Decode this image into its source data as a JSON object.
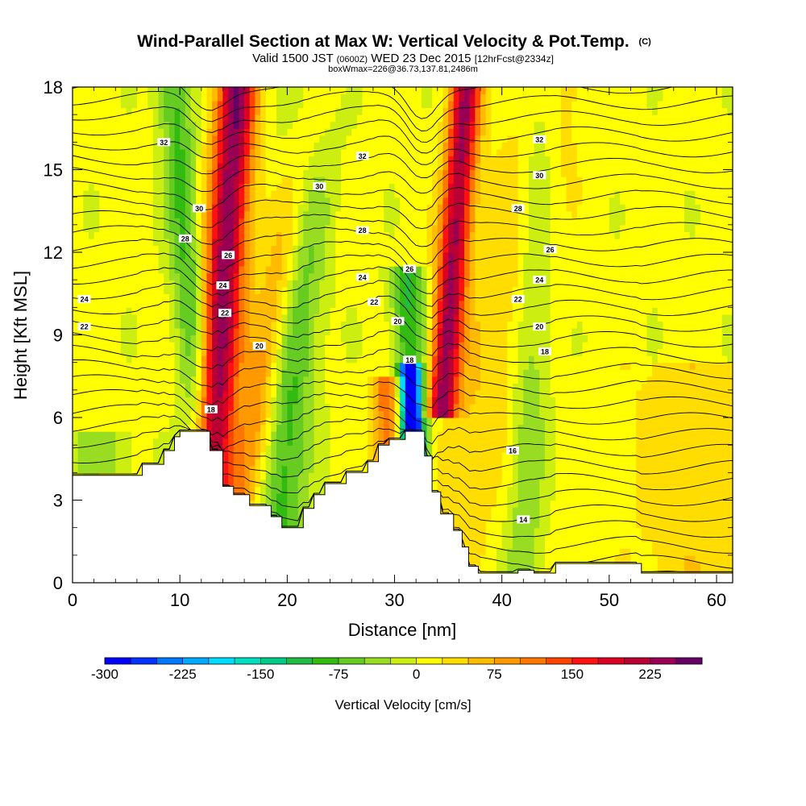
{
  "title": {
    "main": "Wind-Parallel Section at Max W: Vertical Velocity & Pot.Temp.",
    "main_mark": "(C)",
    "valid_a": "Valid 1500 JST",
    "valid_b": "(0600Z)",
    "valid_c": "WED 23 Dec 2015",
    "valid_d": "[12hrFcst@2334z]",
    "box": "boxWmax=226@36.73,137.81,2486m"
  },
  "chart_data": {
    "type": "heatmap",
    "xlabel": "Distance [nm]",
    "ylabel": "Height [Kft MSL]",
    "xlim": [
      0,
      61.5
    ],
    "ylim": [
      0,
      18
    ],
    "xticks": [
      "0",
      "10",
      "20",
      "30",
      "40",
      "50",
      "60"
    ],
    "yticks": [
      "0",
      "3",
      "6",
      "9",
      "12",
      "15",
      "18"
    ],
    "colorbar": {
      "title": "Vertical Velocity [cm/s]",
      "tick_labels": [
        "-300",
        "-225",
        "-150",
        "-75",
        "0",
        "75",
        "150",
        "225"
      ],
      "levels": [
        -300,
        -275,
        -250,
        -225,
        -200,
        -175,
        -150,
        -125,
        -100,
        -75,
        -50,
        -25,
        0,
        25,
        50,
        75,
        100,
        125,
        150,
        175,
        200,
        225,
        250
      ],
      "colors": [
        "#0000ff",
        "#0033ff",
        "#0077ff",
        "#00aaff",
        "#00ddff",
        "#00e0c0",
        "#00cc88",
        "#22bb44",
        "#33bb11",
        "#66cc22",
        "#99dd22",
        "#ccee11",
        "#ffff00",
        "#ffdd00",
        "#ffbb00",
        "#ff9900",
        "#ff7700",
        "#ff4400",
        "#ff1111",
        "#dd0022",
        "#bb0033",
        "#990055",
        "#660066"
      ]
    },
    "terrain_kft": [
      [
        0,
        3.9
      ],
      [
        6.5,
        3.9
      ],
      [
        6.5,
        4.3
      ],
      [
        8.5,
        4.3
      ],
      [
        8.5,
        4.8
      ],
      [
        9.5,
        4.8
      ],
      [
        9.5,
        5.3
      ],
      [
        10,
        5.3
      ],
      [
        10,
        5.5
      ],
      [
        12.8,
        5.5
      ],
      [
        12.8,
        4.8
      ],
      [
        14,
        4.8
      ],
      [
        14,
        3.5
      ],
      [
        15,
        3.5
      ],
      [
        15,
        3.2
      ],
      [
        16.5,
        3.2
      ],
      [
        16.5,
        2.8
      ],
      [
        18.5,
        2.8
      ],
      [
        18.5,
        2.4
      ],
      [
        19.5,
        2.4
      ],
      [
        19.5,
        2.0
      ],
      [
        21.5,
        2.0
      ],
      [
        21.5,
        2.7
      ],
      [
        22.5,
        2.7
      ],
      [
        22.5,
        3.2
      ],
      [
        23.5,
        3.2
      ],
      [
        23.5,
        3.6
      ],
      [
        25.5,
        3.6
      ],
      [
        25.5,
        4.0
      ],
      [
        27.5,
        4.0
      ],
      [
        27.5,
        4.4
      ],
      [
        28.5,
        4.4
      ],
      [
        28.5,
        5.0
      ],
      [
        29.5,
        5.0
      ],
      [
        29.5,
        5.2
      ],
      [
        31,
        5.2
      ],
      [
        31,
        5.5
      ],
      [
        32.8,
        5.5
      ],
      [
        32.8,
        4.6
      ],
      [
        33.5,
        4.6
      ],
      [
        33.5,
        3.3
      ],
      [
        34.3,
        3.3
      ],
      [
        34.3,
        2.5
      ],
      [
        35.5,
        2.5
      ],
      [
        35.5,
        1.9
      ],
      [
        36.3,
        1.9
      ],
      [
        36.3,
        1.3
      ],
      [
        36.9,
        1.3
      ],
      [
        36.9,
        0.6
      ],
      [
        37.8,
        0.6
      ],
      [
        37.8,
        0.35
      ],
      [
        41.5,
        0.35
      ],
      [
        41.5,
        0.45
      ],
      [
        43,
        0.45
      ],
      [
        43,
        0.35
      ],
      [
        45,
        0.35
      ],
      [
        45,
        0.7
      ],
      [
        53,
        0.7
      ],
      [
        53,
        0.35
      ],
      [
        61.5,
        0.35
      ]
    ],
    "updraft_bands": [
      {
        "name": "A",
        "x0": 13.2,
        "slope": 0.18,
        "width": 1.3,
        "amp": 240
      },
      {
        "name": "B",
        "x0": 17.0,
        "slope": 0.48,
        "width": 1.4,
        "amp": 95
      },
      {
        "name": "C",
        "x0": 29.4,
        "slope": -0.02,
        "width": 0.9,
        "amp": 125,
        "top": 7.5
      },
      {
        "name": "D",
        "x0": 34.3,
        "slope": 0.2,
        "width": 1.0,
        "amp": 220,
        "bottom": 6
      },
      {
        "name": "E",
        "x0": 37.5,
        "slope": 0.6,
        "width": 2.8,
        "amp": 40
      },
      {
        "name": "F",
        "x0": 58,
        "slope": 0.0,
        "width": 4.5,
        "amp": 35,
        "top": 8
      }
    ],
    "downdraft_bands": [
      {
        "name": "A",
        "x0": 11.8,
        "slope": -0.2,
        "width": 1.1,
        "amp": -90
      },
      {
        "name": "B",
        "x0": 20.0,
        "slope": 0.2,
        "width": 1.6,
        "amp": -95
      },
      {
        "name": "C",
        "x0": 31.6,
        "slope": -0.1,
        "width": 0.65,
        "amp": -290,
        "bottom": 3.4,
        "top": 8
      },
      {
        "name": "D",
        "x0": 31.8,
        "slope": -0.12,
        "width": 1.1,
        "amp": -110,
        "top": 11.5
      },
      {
        "name": "E",
        "x0": 42.5,
        "slope": 0.1,
        "width": 1.2,
        "amp": -55
      },
      {
        "name": "F",
        "x0": 2.5,
        "slope": 0.0,
        "width": 2.2,
        "amp": -45,
        "bottom": 3.9,
        "top": 5.5
      }
    ],
    "theta_contours": {
      "unit": "C",
      "labels": [
        {
          "text": "32",
          "x": 8.5,
          "y": 16.0
        },
        {
          "text": "30",
          "x": 11.8,
          "y": 13.6
        },
        {
          "text": "28",
          "x": 10.5,
          "y": 12.5
        },
        {
          "text": "26",
          "x": 14.5,
          "y": 11.9
        },
        {
          "text": "24",
          "x": 14.0,
          "y": 10.8
        },
        {
          "text": "22",
          "x": 14.2,
          "y": 9.8
        },
        {
          "text": "20",
          "x": 17.4,
          "y": 8.6
        },
        {
          "text": "18",
          "x": 12.9,
          "y": 6.3
        },
        {
          "text": "24",
          "x": 1.1,
          "y": 10.3
        },
        {
          "text": "22",
          "x": 1.1,
          "y": 9.3
        },
        {
          "text": "32",
          "x": 27.0,
          "y": 15.5
        },
        {
          "text": "30",
          "x": 23.0,
          "y": 14.4
        },
        {
          "text": "28",
          "x": 27.0,
          "y": 12.8
        },
        {
          "text": "24",
          "x": 27.0,
          "y": 11.1
        },
        {
          "text": "22",
          "x": 28.1,
          "y": 10.2
        },
        {
          "text": "20",
          "x": 30.3,
          "y": 9.5
        },
        {
          "text": "26",
          "x": 31.4,
          "y": 11.4
        },
        {
          "text": "18",
          "x": 31.4,
          "y": 8.1
        },
        {
          "text": "32",
          "x": 43.5,
          "y": 16.1
        },
        {
          "text": "30",
          "x": 43.5,
          "y": 14.8
        },
        {
          "text": "28",
          "x": 41.5,
          "y": 13.6
        },
        {
          "text": "26",
          "x": 44.5,
          "y": 12.1
        },
        {
          "text": "24",
          "x": 43.5,
          "y": 11.0
        },
        {
          "text": "22",
          "x": 41.5,
          "y": 10.3
        },
        {
          "text": "20",
          "x": 43.5,
          "y": 9.3
        },
        {
          "text": "18",
          "x": 44.0,
          "y": 8.4
        },
        {
          "text": "16",
          "x": 41.0,
          "y": 4.8
        },
        {
          "text": "14",
          "x": 42.0,
          "y": 2.3
        }
      ]
    }
  }
}
